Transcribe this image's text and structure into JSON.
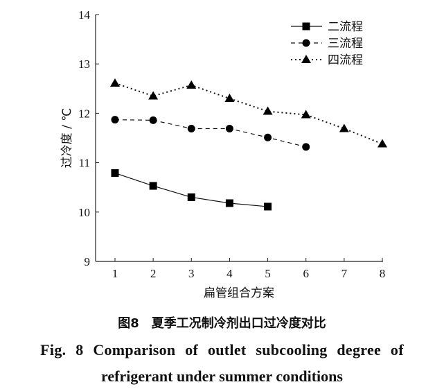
{
  "chart_data": {
    "type": "line",
    "xlabel": "扁管组合方案",
    "ylabel": "过冷度 / ℃",
    "xlim": [
      1,
      8
    ],
    "ylim": [
      9,
      14
    ],
    "xticks": [
      "1",
      "2",
      "3",
      "4",
      "5",
      "6",
      "7",
      "8"
    ],
    "yticks": [
      "9",
      "10",
      "11",
      "12",
      "13",
      "14"
    ],
    "grid": false,
    "legend_position": "top-right",
    "series": [
      {
        "name": "二流程",
        "marker": "square",
        "line": "solid",
        "x": [
          1,
          2,
          3,
          4,
          5
        ],
        "values": [
          10.79,
          10.53,
          10.3,
          10.18,
          10.11
        ]
      },
      {
        "name": "三流程",
        "marker": "circle",
        "line": "dashed",
        "x": [
          1,
          2,
          3,
          4,
          5,
          6
        ],
        "values": [
          11.87,
          11.86,
          11.69,
          11.69,
          11.51,
          11.32
        ]
      },
      {
        "name": "四流程",
        "marker": "triangle",
        "line": "dotted",
        "x": [
          1,
          2,
          3,
          4,
          5,
          6,
          7,
          8
        ],
        "values": [
          12.61,
          12.35,
          12.57,
          12.3,
          12.04,
          11.97,
          11.69,
          11.38
        ]
      }
    ]
  },
  "caption": {
    "cn": "图8　夏季工况制冷剂出口过冷度对比",
    "en_line1": "Fig. 8   Comparison of outlet subcooling degree of",
    "en_line2": "refrigerant under summer conditions"
  }
}
